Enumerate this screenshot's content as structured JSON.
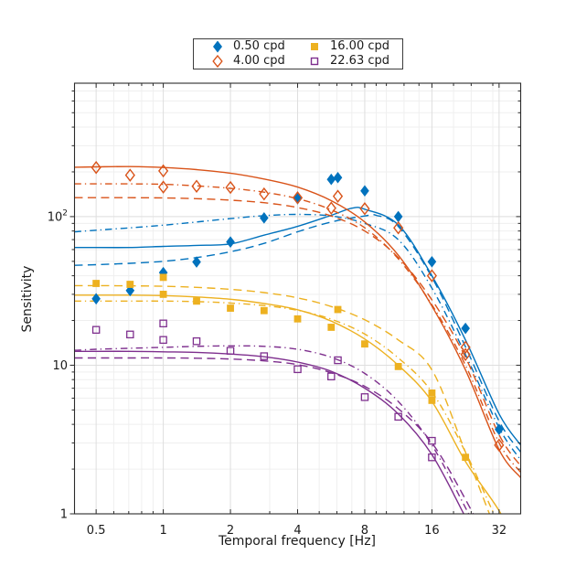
{
  "axes": {
    "xlabel": "Temporal frequency [Hz]",
    "ylabel": "Sensitivity"
  },
  "legend": {
    "items": [
      {
        "label": "0.50 cpd",
        "marker": "diamond-filled",
        "color": "#0072BD"
      },
      {
        "label": "16.00 cpd",
        "marker": "square-filled",
        "color": "#EDB120"
      },
      {
        "label": "4.00 cpd",
        "marker": "diamond-open",
        "color": "#D95319"
      },
      {
        "label": "22.63 cpd",
        "marker": "square-open",
        "color": "#7E2F8E"
      }
    ]
  },
  "chart_data": {
    "type": "scatter",
    "title": "",
    "xlabel": "Temporal frequency [Hz]",
    "ylabel": "Sensitivity",
    "x_scale": "log2",
    "y_scale": "log10",
    "xlim": [
      0.4,
      40
    ],
    "ylim": [
      1,
      790
    ],
    "grid": true,
    "x_ticks": [
      0.5,
      1,
      2,
      4,
      8,
      16,
      32
    ],
    "x_tick_labels": [
      "0.5",
      "1",
      "2",
      "4",
      "8",
      "16",
      "32"
    ],
    "y_ticks": [
      1,
      10,
      100
    ],
    "y_tick_labels": [
      "1",
      "10",
      "10^2"
    ],
    "x_minor": [
      0.6,
      0.7,
      0.8,
      0.9,
      3,
      5,
      6,
      7,
      9,
      10,
      12,
      14,
      20,
      24,
      30
    ],
    "y_minor": [
      2,
      3,
      4,
      5,
      6,
      7,
      8,
      9,
      20,
      30,
      40,
      50,
      60,
      70,
      80,
      90,
      200,
      300,
      400,
      500,
      600,
      700
    ],
    "series": [
      {
        "name": "0.50 cpd",
        "color": "#0072BD",
        "marker": "diamond-filled",
        "points": [
          [
            0.5,
            28
          ],
          [
            0.71,
            31.8
          ],
          [
            1,
            42
          ],
          [
            1.41,
            49.5
          ],
          [
            2,
            67.5
          ],
          [
            2.83,
            98
          ],
          [
            4,
            132
          ],
          [
            5.66,
            178
          ],
          [
            6.06,
            183
          ],
          [
            8,
            149
          ],
          [
            11.31,
            100
          ],
          [
            16,
            49.7
          ],
          [
            22.63,
            17.7
          ],
          [
            32,
            3.7
          ]
        ],
        "fits": {
          "solid": [
            [
              0.4,
              62
            ],
            [
              0.5,
              62
            ],
            [
              0.71,
              62
            ],
            [
              1,
              63
            ],
            [
              1.41,
              64
            ],
            [
              2,
              65.5
            ],
            [
              2.83,
              75
            ],
            [
              4,
              86
            ],
            [
              5.66,
              102
            ],
            [
              7,
              114
            ],
            [
              8,
              112
            ],
            [
              11.31,
              88
            ],
            [
              16,
              40
            ],
            [
              22.63,
              14.8
            ],
            [
              32,
              4.7
            ],
            [
              40,
              2.9
            ]
          ],
          "dashed": [
            [
              0.4,
              47
            ],
            [
              0.5,
              47.5
            ],
            [
              0.71,
              48.5
            ],
            [
              1,
              50
            ],
            [
              1.41,
              53
            ],
            [
              2,
              58
            ],
            [
              2.83,
              66
            ],
            [
              4,
              79
            ],
            [
              5.66,
              92
            ],
            [
              8,
              101
            ],
            [
              9,
              102
            ],
            [
              11.31,
              86
            ],
            [
              16,
              39
            ],
            [
              22.63,
              13.3
            ],
            [
              32,
              4.2
            ],
            [
              40,
              2.6
            ]
          ],
          "dashdot": [
            [
              0.4,
              79
            ],
            [
              0.5,
              81
            ],
            [
              0.71,
              84
            ],
            [
              1,
              87.5
            ],
            [
              1.41,
              92
            ],
            [
              2,
              97
            ],
            [
              2.83,
              101.5
            ],
            [
              4,
              103.5
            ],
            [
              5.66,
              101
            ],
            [
              8,
              90
            ],
            [
              11.31,
              70
            ],
            [
              16,
              33
            ],
            [
              22.63,
              11.8
            ],
            [
              32,
              3.8
            ],
            [
              40,
              2.3
            ]
          ]
        }
      },
      {
        "name": "4.00 cpd",
        "color": "#D95319",
        "marker": "diamond-open",
        "points": [
          [
            0.5,
            214
          ],
          [
            0.71,
            190
          ],
          [
            1,
            203
          ],
          [
            1,
            158
          ],
          [
            1.41,
            160
          ],
          [
            2,
            157
          ],
          [
            2.83,
            142
          ],
          [
            4,
            134
          ],
          [
            5.66,
            114
          ],
          [
            6.06,
            137
          ],
          [
            8,
            113
          ],
          [
            11.31,
            84
          ],
          [
            16,
            40
          ],
          [
            22.63,
            13.2
          ],
          [
            22.63,
            11.8
          ],
          [
            32,
            2.9
          ]
        ],
        "fits": {
          "solid": [
            [
              0.4,
              215
            ],
            [
              0.5,
              216
            ],
            [
              0.71,
              217
            ],
            [
              1,
              214
            ],
            [
              1.41,
              207
            ],
            [
              2,
              196
            ],
            [
              2.83,
              179
            ],
            [
              4,
              158
            ],
            [
              5.66,
              128
            ],
            [
              8,
              92
            ],
            [
              11.31,
              55
            ],
            [
              16,
              25
            ],
            [
              22.63,
              9.3
            ],
            [
              32,
              2.7
            ],
            [
              40,
              1.75
            ]
          ],
          "dashed": [
            [
              0.4,
              134
            ],
            [
              0.5,
              134
            ],
            [
              0.71,
              134
            ],
            [
              1,
              133.5
            ],
            [
              1.41,
              132
            ],
            [
              2,
              129
            ],
            [
              2.83,
              124
            ],
            [
              4,
              115
            ],
            [
              5.66,
              101
            ],
            [
              8,
              80
            ],
            [
              11.31,
              53
            ],
            [
              16,
              27.5
            ],
            [
              22.63,
              11.3
            ],
            [
              32,
              3.4
            ],
            [
              40,
              2.1
            ]
          ],
          "dashdot": [
            [
              0.4,
              166
            ],
            [
              0.5,
              166
            ],
            [
              0.71,
              166
            ],
            [
              1,
              165
            ],
            [
              1.41,
              161
            ],
            [
              2,
              155
            ],
            [
              2.83,
              146
            ],
            [
              4,
              132
            ],
            [
              5.66,
              111
            ],
            [
              8,
              84
            ],
            [
              11.31,
              52
            ],
            [
              16,
              25.5
            ],
            [
              22.63,
              10
            ],
            [
              32,
              3.0
            ],
            [
              40,
              1.9
            ]
          ]
        }
      },
      {
        "name": "16.00 cpd",
        "color": "#EDB120",
        "marker": "square-filled",
        "points": [
          [
            0.5,
            35.5
          ],
          [
            0.71,
            35
          ],
          [
            1,
            39
          ],
          [
            1,
            30
          ],
          [
            1.41,
            27
          ],
          [
            2,
            24.2
          ],
          [
            2.83,
            23.3
          ],
          [
            4,
            20.5
          ],
          [
            5.66,
            18
          ],
          [
            6.06,
            23.7
          ],
          [
            8,
            13.9
          ],
          [
            11.31,
            9.8
          ],
          [
            16,
            6.5
          ],
          [
            16,
            5.8
          ],
          [
            22.63,
            2.4
          ]
        ],
        "fits": {
          "solid": [
            [
              0.4,
              29.6
            ],
            [
              0.5,
              29.6
            ],
            [
              0.71,
              29.6
            ],
            [
              1,
              29.4
            ],
            [
              1.41,
              28.8
            ],
            [
              2,
              27.8
            ],
            [
              2.83,
              26
            ],
            [
              4,
              23.6
            ],
            [
              5.66,
              19.8
            ],
            [
              8,
              15
            ],
            [
              11.31,
              10
            ],
            [
              16,
              5.7
            ],
            [
              22.63,
              2.25
            ],
            [
              32,
              1.05
            ],
            [
              40,
              0.55
            ]
          ],
          "dashed": [
            [
              0.4,
              34.3
            ],
            [
              0.5,
              34.3
            ],
            [
              0.71,
              34.2
            ],
            [
              1,
              34
            ],
            [
              1.41,
              33.4
            ],
            [
              2,
              32.4
            ],
            [
              2.83,
              30.8
            ],
            [
              4,
              28.4
            ],
            [
              5.66,
              24.8
            ],
            [
              8,
              20.2
            ],
            [
              11.31,
              14.8
            ],
            [
              16,
              9.3
            ],
            [
              22.63,
              2.6
            ],
            [
              32,
              0.7
            ],
            [
              40,
              0.4
            ]
          ],
          "dashdot": [
            [
              0.4,
              27
            ],
            [
              0.5,
              27
            ],
            [
              0.71,
              27
            ],
            [
              1,
              27
            ],
            [
              1.41,
              26.8
            ],
            [
              2,
              26.2
            ],
            [
              2.83,
              25.2
            ],
            [
              4,
              23.4
            ],
            [
              5.66,
              20.4
            ],
            [
              8,
              16.2
            ],
            [
              11.31,
              11.2
            ],
            [
              16,
              6.6
            ],
            [
              22.63,
              2.6
            ],
            [
              32,
              0.85
            ],
            [
              40,
              0.5
            ]
          ]
        }
      },
      {
        "name": "22.63 cpd",
        "color": "#7E2F8E",
        "marker": "square-open",
        "points": [
          [
            0.5,
            17.3
          ],
          [
            0.71,
            16.1
          ],
          [
            1,
            19.1
          ],
          [
            1,
            14.8
          ],
          [
            1.41,
            14.5
          ],
          [
            2,
            12.5
          ],
          [
            2.83,
            11.5
          ],
          [
            4,
            9.4
          ],
          [
            5.66,
            8.4
          ],
          [
            6.06,
            10.8
          ],
          [
            8,
            6.1
          ],
          [
            11.31,
            4.5
          ],
          [
            16,
            3.1
          ],
          [
            16,
            2.4
          ]
        ],
        "fits": {
          "solid": [
            [
              0.4,
              12.4
            ],
            [
              0.5,
              12.4
            ],
            [
              0.71,
              12.4
            ],
            [
              1,
              12.3
            ],
            [
              1.41,
              12.2
            ],
            [
              2,
              11.9
            ],
            [
              2.83,
              11.4
            ],
            [
              4,
              10.5
            ],
            [
              5.66,
              9.1
            ],
            [
              8,
              7.0
            ],
            [
              11.31,
              4.7
            ],
            [
              16,
              2.5
            ],
            [
              22.63,
              0.95
            ],
            [
              32,
              0.35
            ]
          ],
          "dashed": [
            [
              0.4,
              11.2
            ],
            [
              0.5,
              11.2
            ],
            [
              0.71,
              11.2
            ],
            [
              1,
              11.2
            ],
            [
              1.41,
              11.15
            ],
            [
              2,
              11.0
            ],
            [
              2.83,
              10.7
            ],
            [
              4,
              10.1
            ],
            [
              5.66,
              8.9
            ],
            [
              8,
              7.2
            ],
            [
              11.31,
              5.1
            ],
            [
              16,
              3.0
            ],
            [
              22.63,
              1.25
            ],
            [
              32,
              0.45
            ]
          ],
          "dashdot": [
            [
              0.4,
              12.6
            ],
            [
              0.5,
              12.8
            ],
            [
              0.71,
              13.0
            ],
            [
              1,
              13.2
            ],
            [
              1.41,
              13.4
            ],
            [
              2,
              13.5
            ],
            [
              2.83,
              13.4
            ],
            [
              4,
              12.8
            ],
            [
              5.66,
              11.3
            ],
            [
              8,
              8.8
            ],
            [
              11.31,
              5.7
            ],
            [
              16,
              2.9
            ],
            [
              22.63,
              1.1
            ],
            [
              32,
              0.4
            ]
          ]
        }
      }
    ]
  }
}
